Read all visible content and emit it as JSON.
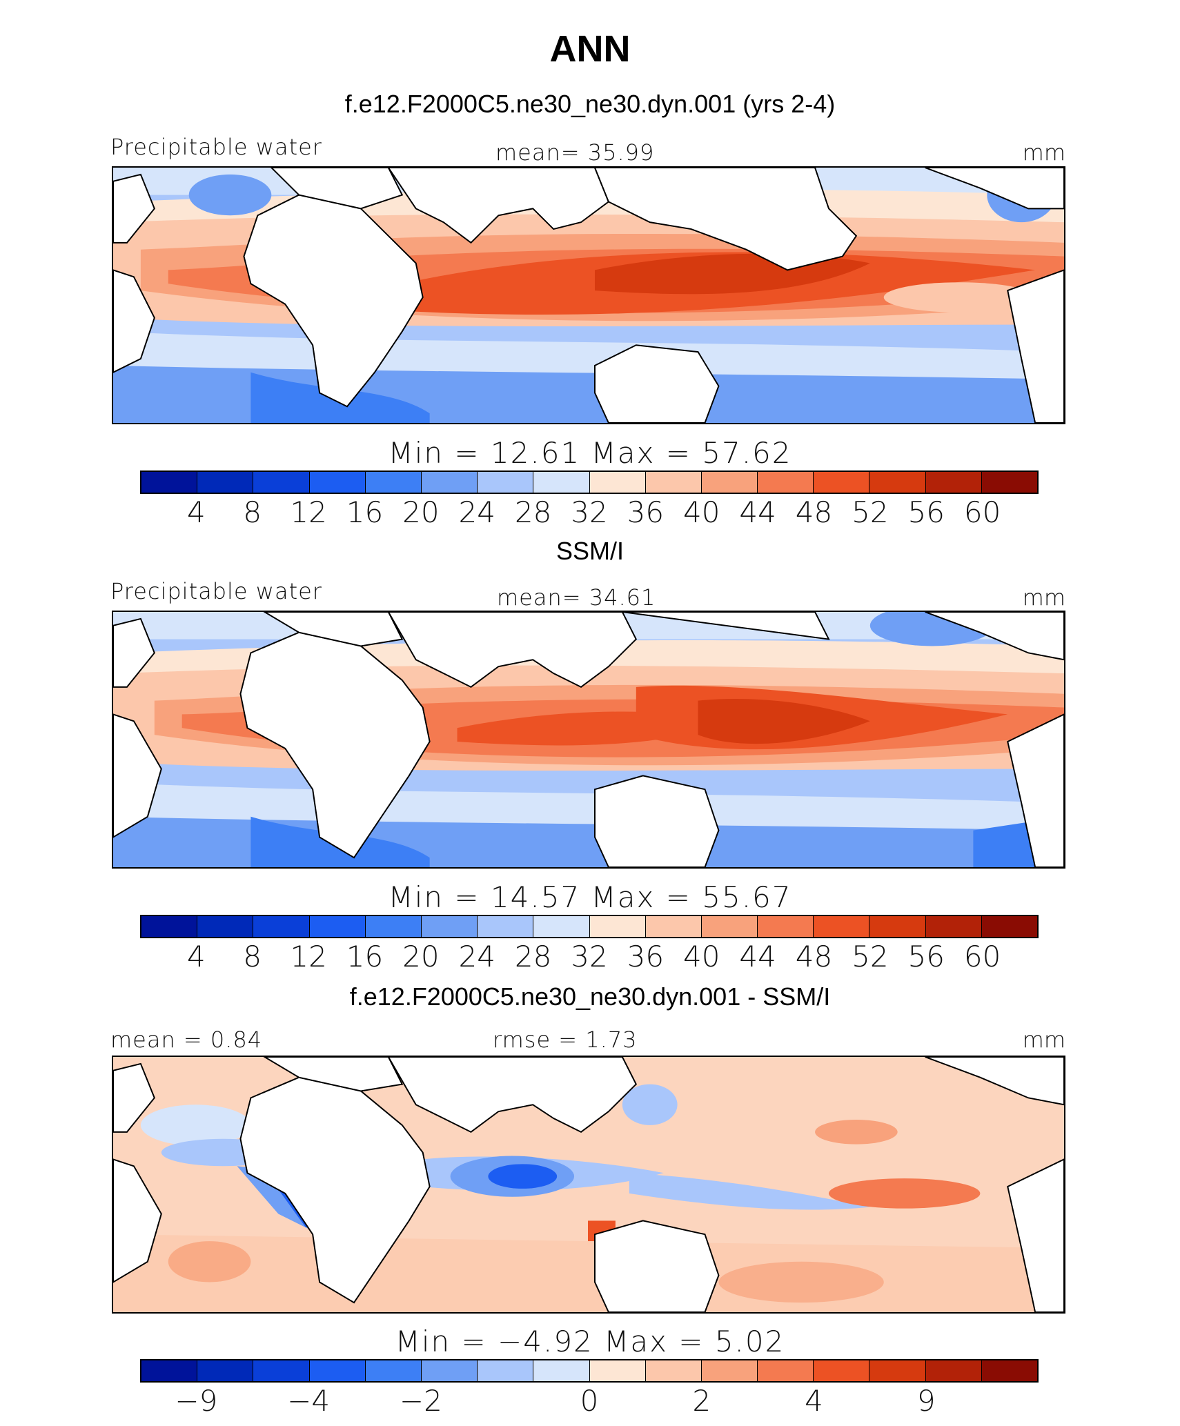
{
  "figure": {
    "title": "ANN"
  },
  "panels": [
    {
      "title": "f.e12.F2000C5.ne30_ne30.dyn.001 (yrs 2-4)",
      "left_label": "Precipitable water",
      "mid_label": "mean=  35.99",
      "units": "mm",
      "min_max": "Min  =   12.61  Max  =   57.62",
      "colorbar_labels": [
        "4",
        "8",
        "12",
        "16",
        "20",
        "24",
        "28",
        "32",
        "36",
        "40",
        "44",
        "48",
        "52",
        "56",
        "60"
      ]
    },
    {
      "title": "SSM/I",
      "left_label": "Precipitable water",
      "mid_label": "mean=  34.61",
      "units": "mm",
      "min_max": "Min  =   14.57  Max  =   55.67",
      "colorbar_labels": [
        "4",
        "8",
        "12",
        "16",
        "20",
        "24",
        "28",
        "32",
        "36",
        "40",
        "44",
        "48",
        "52",
        "56",
        "60"
      ]
    },
    {
      "title": "f.e12.F2000C5.ne30_ne30.dyn.001 - SSM/I",
      "left_label": "mean =    0.84",
      "mid_label": "rmse =    1.73",
      "units": "mm",
      "min_max": "Min  =   −4.92  Max  =    5.02",
      "colorbar_labels": [
        "−9",
        "−4",
        "−2",
        "0",
        "2",
        "4",
        "9"
      ]
    }
  ],
  "colorbar_colors": [
    "#00139a",
    "#0029b8",
    "#0a3fd8",
    "#1c5df2",
    "#3d7ff5",
    "#6f9ff5",
    "#a9c6fb",
    "#d6e5fb",
    "#fde6d4",
    "#fcc7ab",
    "#f8a27c",
    "#f47a50",
    "#ec5224",
    "#d63a0f",
    "#b22208",
    "#8a0c03"
  ],
  "land_color": "#ffffff"
}
